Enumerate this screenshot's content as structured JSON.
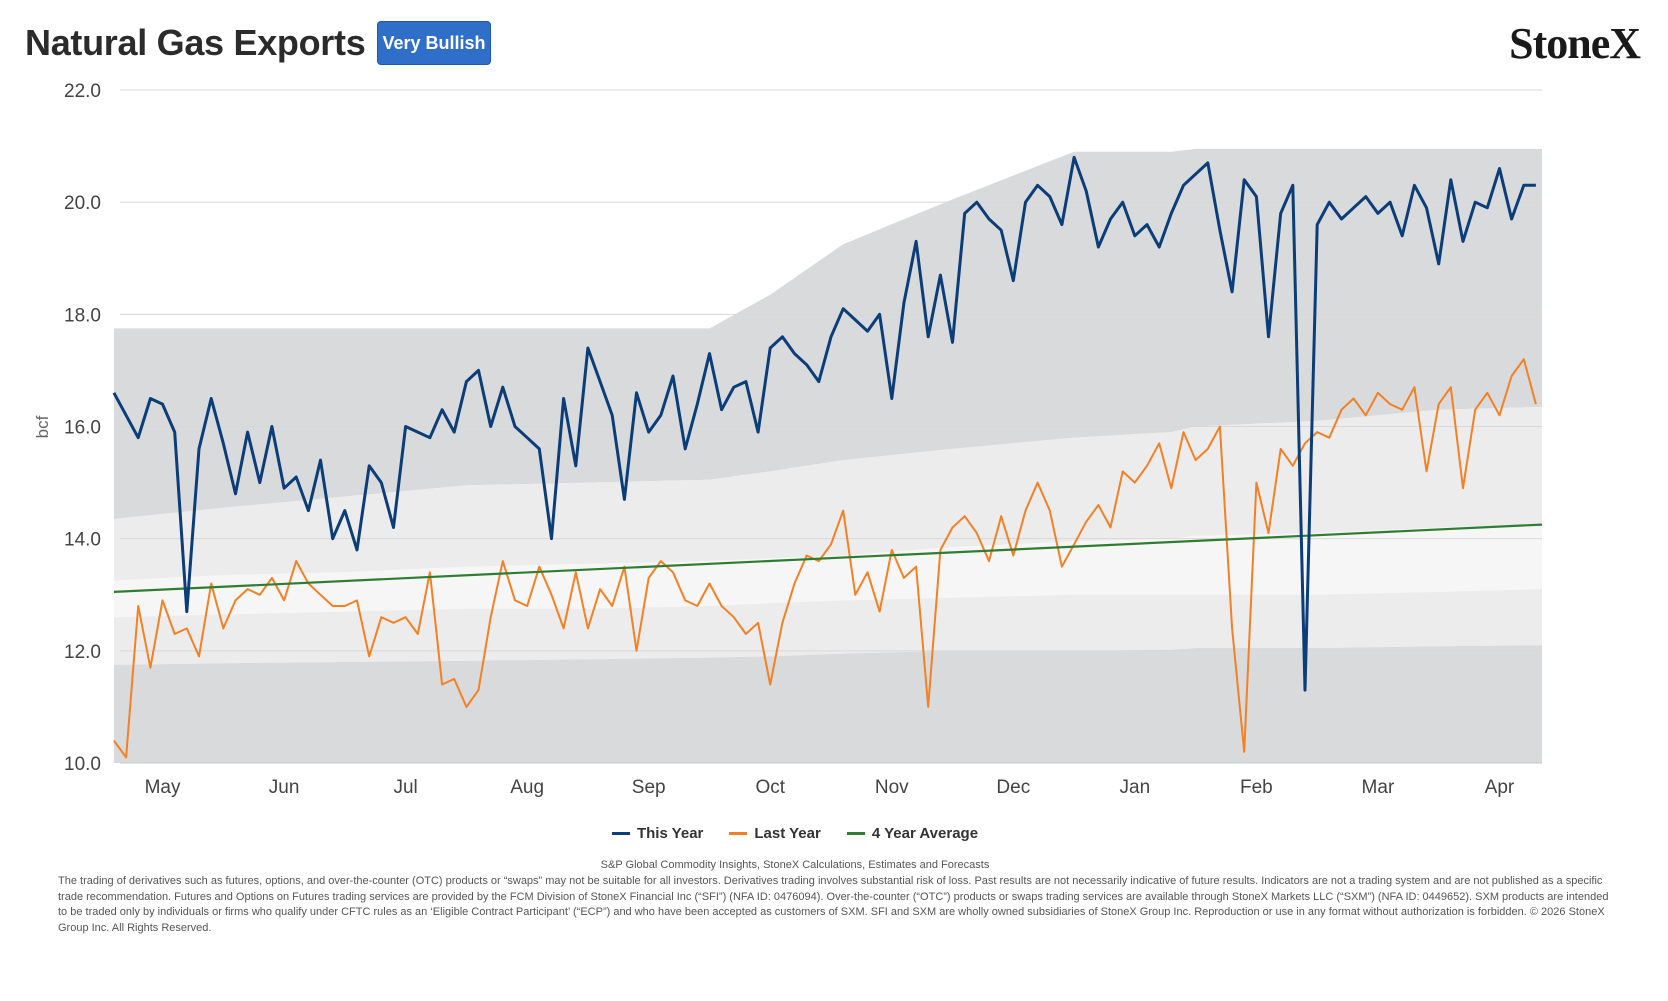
{
  "header": {
    "title": "Natural Gas Exports",
    "badge": "Very Bullish",
    "logo": "StoneX"
  },
  "colors": {
    "this_year": "#0b3d78",
    "last_year": "#f48024",
    "avg": "#2e7d32",
    "band_outer": "#d9dadc",
    "band_mid": "#ececed",
    "band_inner": "#f6f6f7"
  },
  "chart_data": {
    "type": "line",
    "ylabel": "bcf",
    "ylim": [
      10,
      22
    ],
    "yticks": [
      "10.0",
      "12.0",
      "14.0",
      "16.0",
      "18.0",
      "20.0",
      "22.0"
    ],
    "xlim": [
      -0.35,
      11.35
    ],
    "months": [
      "May",
      "Jun",
      "Jul",
      "Aug",
      "Sep",
      "Oct",
      "Nov",
      "Dec",
      "Jan",
      "Feb",
      "Mar",
      "Apr"
    ],
    "legend_position": "bottom",
    "grid": "horizontal",
    "range_bands": {
      "x": [
        -0.4,
        0.5,
        1.5,
        2.5,
        3.5,
        4.5,
        5.0,
        5.6,
        6.5,
        7.5,
        8.3,
        8.5,
        9.5,
        10.5,
        11.5
      ],
      "max": [
        17.75,
        17.75,
        17.75,
        17.75,
        17.75,
        17.75,
        18.35,
        19.25,
        20.05,
        20.9,
        20.9,
        20.95,
        20.95,
        20.95,
        20.95
      ],
      "upper": [
        14.35,
        14.55,
        14.75,
        14.95,
        15.0,
        15.05,
        15.2,
        15.4,
        15.6,
        15.8,
        15.9,
        16.0,
        16.1,
        16.3,
        16.35
      ],
      "mid": [
        13.25,
        13.35,
        13.4,
        13.5,
        13.55,
        13.6,
        13.65,
        13.7,
        13.85,
        13.95,
        14.0,
        14.05,
        14.1,
        14.2,
        14.25
      ],
      "lower": [
        12.6,
        12.65,
        12.7,
        12.75,
        12.75,
        12.8,
        12.85,
        12.9,
        12.95,
        13.0,
        13.0,
        13.0,
        13.0,
        13.05,
        13.1
      ],
      "min": [
        11.75,
        11.78,
        11.8,
        11.82,
        11.85,
        11.88,
        11.9,
        11.95,
        12.0,
        12.0,
        12.02,
        12.05,
        12.05,
        12.08,
        12.1
      ]
    },
    "series": [
      {
        "name": "This Year",
        "x": [
          -0.4,
          -0.3,
          -0.2,
          -0.1,
          0.0,
          0.1,
          0.2,
          0.3,
          0.4,
          0.5,
          0.6,
          0.7,
          0.8,
          0.9,
          1.0,
          1.1,
          1.2,
          1.3,
          1.4,
          1.5,
          1.6,
          1.7,
          1.8,
          1.9,
          2.0,
          2.1,
          2.2,
          2.3,
          2.4,
          2.5,
          2.6,
          2.7,
          2.8,
          2.9,
          3.0,
          3.1,
          3.2,
          3.3,
          3.4,
          3.5,
          3.6,
          3.7,
          3.8,
          3.9,
          4.0,
          4.1,
          4.2,
          4.3,
          4.4,
          4.5,
          4.6,
          4.7,
          4.8,
          4.9,
          5.0,
          5.1,
          5.2,
          5.3,
          5.4,
          5.5,
          5.6,
          5.7,
          5.8,
          5.9,
          6.0,
          6.1,
          6.2,
          6.3,
          6.4,
          6.5,
          6.6,
          6.7,
          6.8,
          6.9,
          7.0,
          7.1,
          7.2,
          7.3,
          7.4,
          7.5,
          7.6,
          7.7,
          7.8,
          7.9,
          8.0,
          8.1,
          8.2,
          8.3,
          8.4,
          8.5,
          8.6,
          8.7,
          8.8,
          8.9,
          9.0,
          9.1,
          9.2,
          9.3,
          9.4,
          9.5,
          9.6,
          9.7,
          9.8,
          9.9,
          10.0,
          10.1,
          10.2,
          10.3,
          10.4,
          10.5,
          10.6,
          10.7,
          10.8,
          10.9,
          11.0,
          11.1,
          11.2,
          11.3
        ],
        "y": [
          16.6,
          16.2,
          15.8,
          16.5,
          16.4,
          15.9,
          12.7,
          15.6,
          16.5,
          15.7,
          14.8,
          15.9,
          15.0,
          16.0,
          14.9,
          15.1,
          14.5,
          15.4,
          14.0,
          14.5,
          13.8,
          15.3,
          15.0,
          14.2,
          16.0,
          15.9,
          15.8,
          16.3,
          15.9,
          16.8,
          17.0,
          16.0,
          16.7,
          16.0,
          15.8,
          15.6,
          14.0,
          16.5,
          15.3,
          17.4,
          16.8,
          16.2,
          14.7,
          16.6,
          15.9,
          16.2,
          16.9,
          15.6,
          16.4,
          17.3,
          16.3,
          16.7,
          16.8,
          15.9,
          17.4,
          17.6,
          17.3,
          17.1,
          16.8,
          17.6,
          18.1,
          17.9,
          17.7,
          18.0,
          16.5,
          18.2,
          19.3,
          17.6,
          18.7,
          17.5,
          19.8,
          20.0,
          19.7,
          19.5,
          18.6,
          20.0,
          20.3,
          20.1,
          19.6,
          20.8,
          20.2,
          19.2,
          19.7,
          20.0,
          19.4,
          19.6,
          19.2,
          19.8,
          20.3,
          20.5,
          20.7,
          19.5,
          18.4,
          20.4,
          20.1,
          17.6,
          19.8,
          20.3,
          11.3,
          19.6,
          20.0,
          19.7,
          19.9,
          20.1,
          19.8,
          20.0,
          19.4,
          20.3,
          19.9,
          18.9,
          20.4,
          19.3,
          20.0,
          19.9,
          20.6,
          19.7,
          20.3,
          20.3
        ],
        "color_key": "this_year"
      },
      {
        "name": "Last Year",
        "x": [
          -0.4,
          -0.3,
          -0.2,
          -0.1,
          0.0,
          0.1,
          0.2,
          0.3,
          0.4,
          0.5,
          0.6,
          0.7,
          0.8,
          0.9,
          1.0,
          1.1,
          1.2,
          1.3,
          1.4,
          1.5,
          1.6,
          1.7,
          1.8,
          1.9,
          2.0,
          2.1,
          2.2,
          2.3,
          2.4,
          2.5,
          2.6,
          2.7,
          2.8,
          2.9,
          3.0,
          3.1,
          3.2,
          3.3,
          3.4,
          3.5,
          3.6,
          3.7,
          3.8,
          3.9,
          4.0,
          4.1,
          4.2,
          4.3,
          4.4,
          4.5,
          4.6,
          4.7,
          4.8,
          4.9,
          5.0,
          5.1,
          5.2,
          5.3,
          5.4,
          5.5,
          5.6,
          5.7,
          5.8,
          5.9,
          6.0,
          6.1,
          6.2,
          6.3,
          6.4,
          6.5,
          6.6,
          6.7,
          6.8,
          6.9,
          7.0,
          7.1,
          7.2,
          7.3,
          7.4,
          7.5,
          7.6,
          7.7,
          7.8,
          7.9,
          8.0,
          8.1,
          8.2,
          8.3,
          8.4,
          8.5,
          8.6,
          8.7,
          8.8,
          8.9,
          9.0,
          9.1,
          9.2,
          9.3,
          9.4,
          9.5,
          9.6,
          9.7,
          9.8,
          9.9,
          10.0,
          10.1,
          10.2,
          10.3,
          10.4,
          10.5,
          10.6,
          10.7,
          10.8,
          10.9,
          11.0,
          11.1,
          11.2,
          11.3
        ],
        "y": [
          10.4,
          10.1,
          12.8,
          11.7,
          12.9,
          12.3,
          12.4,
          11.9,
          13.2,
          12.4,
          12.9,
          13.1,
          13.0,
          13.3,
          12.9,
          13.6,
          13.2,
          13.0,
          12.8,
          12.8,
          12.9,
          11.9,
          12.6,
          12.5,
          12.6,
          12.3,
          13.4,
          11.4,
          11.5,
          11.0,
          11.3,
          12.6,
          13.6,
          12.9,
          12.8,
          13.5,
          13.0,
          12.4,
          13.4,
          12.4,
          13.1,
          12.8,
          13.5,
          12.0,
          13.3,
          13.6,
          13.4,
          12.9,
          12.8,
          13.2,
          12.8,
          12.6,
          12.3,
          12.5,
          11.4,
          12.5,
          13.2,
          13.7,
          13.6,
          13.9,
          14.5,
          13.0,
          13.4,
          12.7,
          13.8,
          13.3,
          13.5,
          11.0,
          13.8,
          14.2,
          14.4,
          14.1,
          13.6,
          14.4,
          13.7,
          14.5,
          15.0,
          14.5,
          13.5,
          13.9,
          14.3,
          14.6,
          14.2,
          15.2,
          15.0,
          15.3,
          15.7,
          14.9,
          15.9,
          15.4,
          15.6,
          16.0,
          12.4,
          10.2,
          15.0,
          14.1,
          15.6,
          15.3,
          15.7,
          15.9,
          15.8,
          16.3,
          16.5,
          16.2,
          16.6,
          16.4,
          16.3,
          16.7,
          15.2,
          16.4,
          16.7,
          14.9,
          16.3,
          16.6,
          16.2,
          16.9,
          17.2,
          16.4
        ],
        "color_key": "last_year"
      },
      {
        "name": "4 Year Average",
        "x": [
          -0.4,
          11.35
        ],
        "y": [
          13.05,
          14.25
        ],
        "color_key": "avg"
      }
    ]
  },
  "footer": {
    "source": "S&P Global Commodity Insights, StoneX Calculations, Estimates and Forecasts",
    "disclaimer": "The trading of derivatives such as futures, options, and over-the-counter (OTC) products or “swaps” may not be suitable for all investors. Derivatives trading involves substantial risk of loss. Past results are not necessarily indicative of future results. Indicators are not a trading system and are not published as a specific trade recommendation. Futures and Options on Futures trading services are provided by the FCM Division of StoneX Financial Inc (“SFI”) (NFA ID: 0476094). Over-the-counter (“OTC”) products or swaps trading services are available through StoneX Markets LLC (“SXM”) (NFA ID: 0449652). SXM products are intended to be traded only by individuals or firms who qualify under CFTC rules as an ‘Eligible Contract Participant’ (“ECP”) and who have been accepted as customers of SXM. SFI and SXM are wholly owned subsidiaries of StoneX Group Inc. Reproduction or use in any format without authorization is forbidden. © 2026 StoneX Group Inc. All Rights Reserved."
  }
}
